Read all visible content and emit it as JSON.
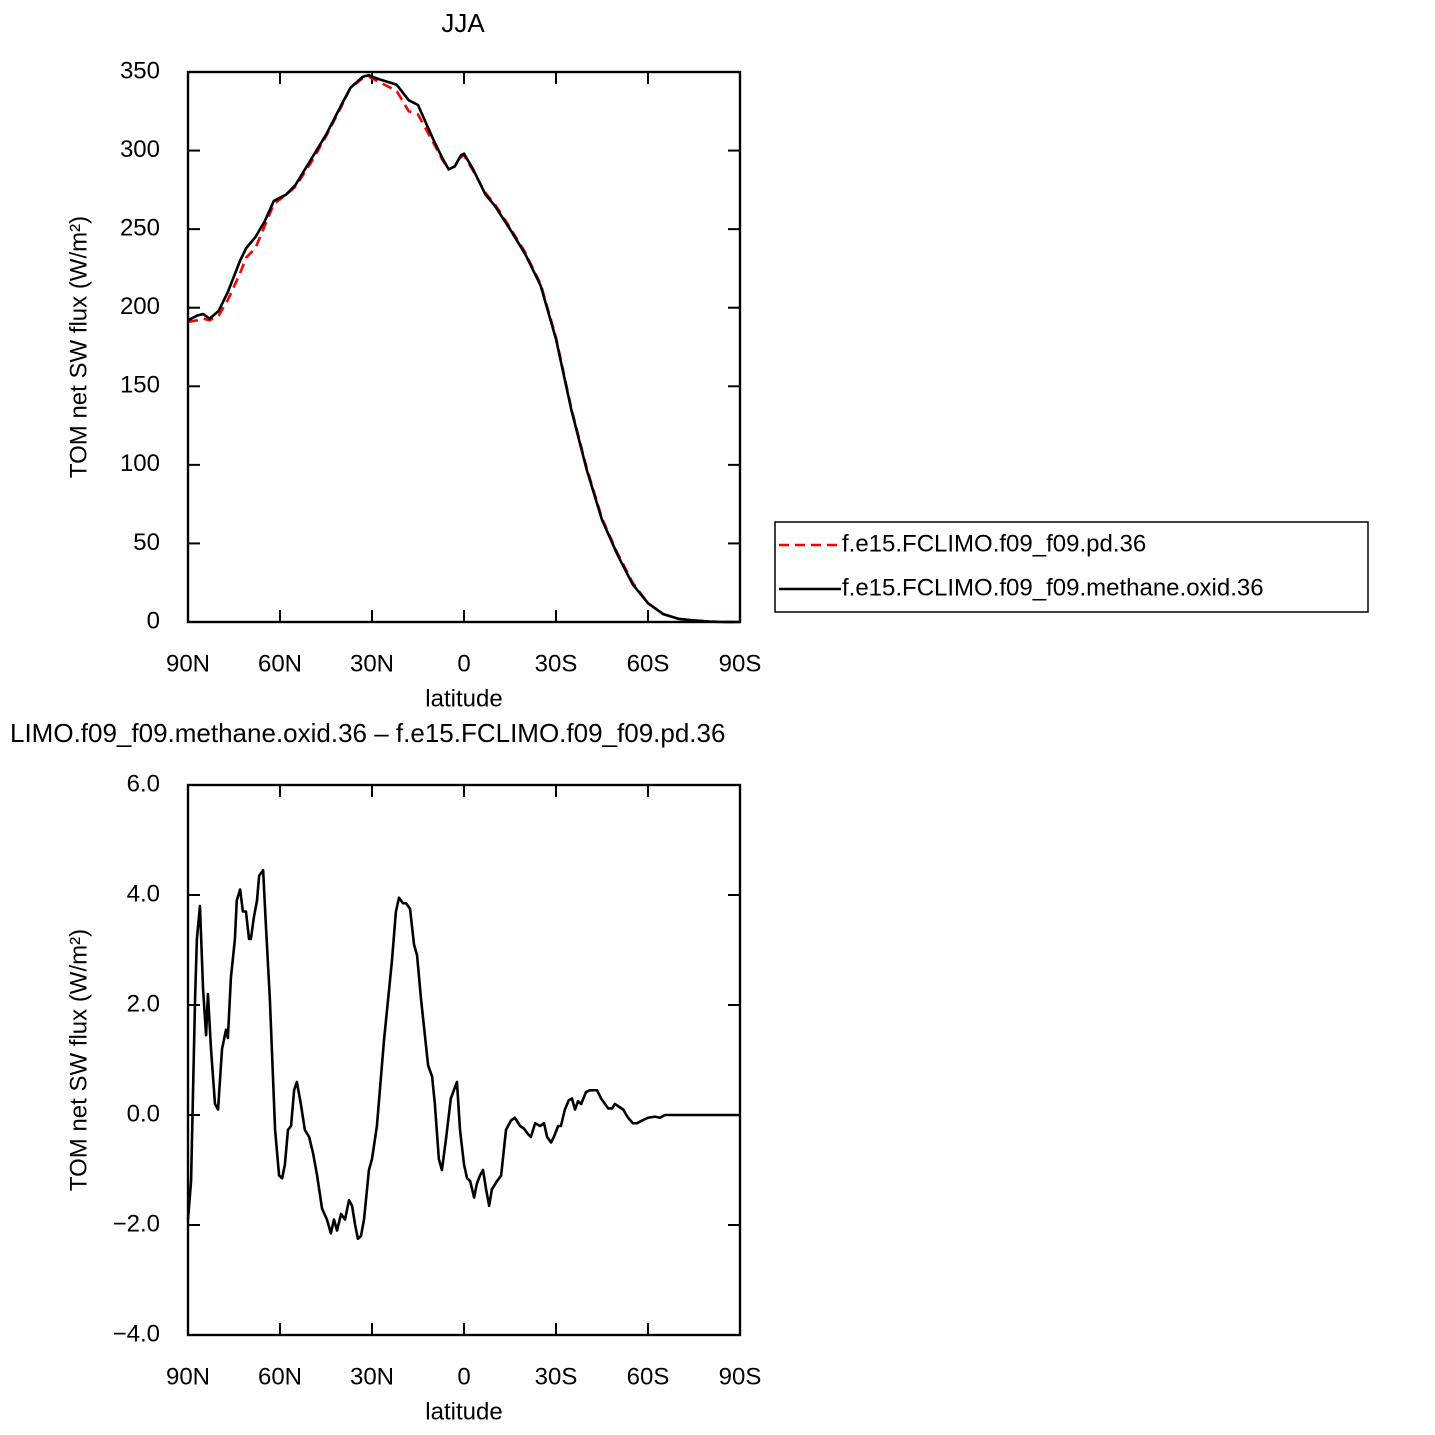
{
  "chart_data": [
    {
      "type": "line",
      "title": "JJA",
      "xlabel": "latitude",
      "ylabel": "TOM net SW flux (W/m²)",
      "xlim": [
        90,
        -90
      ],
      "ylim": [
        0,
        350
      ],
      "xticks": [
        {
          "value": 90,
          "label": "90N"
        },
        {
          "value": 60,
          "label": "60N"
        },
        {
          "value": 30,
          "label": "30N"
        },
        0,
        {
          "value": -30,
          "label": "30S"
        },
        {
          "value": -60,
          "label": "60S"
        },
        {
          "value": -90,
          "label": "90S"
        }
      ],
      "yticks": [
        0,
        50,
        100,
        150,
        200,
        250,
        300,
        350
      ],
      "legend": "right",
      "x": [
        90,
        87,
        85,
        83,
        80,
        77,
        73,
        71,
        68,
        65,
        62,
        58,
        55,
        50,
        45,
        40,
        37,
        33,
        31,
        30,
        27,
        22,
        18,
        15,
        10,
        7,
        5,
        3,
        1,
        0,
        -3,
        -7,
        -10,
        -15,
        -20,
        -25,
        -30,
        -35,
        -40,
        -45,
        -50,
        -55,
        -60,
        -65,
        -70,
        -75,
        -80,
        -85,
        -90
      ],
      "series": [
        {
          "name": "f.e15.FCLIMO.f09_f09.pd.36",
          "color": "#ff0000",
          "dash": true,
          "values": [
            191,
            192,
            193,
            192,
            195,
            205,
            222,
            232,
            238,
            252,
            266,
            272,
            277,
            292,
            309,
            328,
            340,
            346,
            347,
            346,
            343,
            338,
            325,
            323,
            305,
            294,
            288,
            290,
            296,
            297,
            287,
            273,
            266,
            251,
            235,
            215,
            181,
            136,
            98,
            66,
            44,
            25,
            12,
            5,
            2,
            1,
            0.3,
            0,
            0
          ]
        },
        {
          "name": "f.e15.FCLIMO.f09_f09.methane.oxid.36",
          "color": "#000000",
          "dash": false,
          "values": [
            192,
            195,
            196,
            193,
            198,
            210,
            230,
            238,
            245,
            255,
            268,
            272,
            278,
            294,
            310,
            329,
            340,
            347,
            348,
            347,
            345,
            342,
            332,
            329,
            307,
            295,
            288,
            290,
            297,
            298,
            288,
            272,
            265,
            250,
            234,
            214,
            180,
            135,
            97,
            65,
            43,
            24,
            12,
            5,
            2,
            1,
            0.3,
            0,
            0
          ]
        }
      ]
    },
    {
      "type": "line",
      "title": "LIMO.f09_f09.methane.oxid.36 – f.e15.FCLIMO.f09_f09.pd.36",
      "xlabel": "latitude",
      "ylabel": "TOM net SW flux (W/m²)",
      "xlim": [
        90,
        -90
      ],
      "ylim": [
        -4,
        6
      ],
      "xticks": [
        {
          "value": 90,
          "label": "90N"
        },
        {
          "value": 60,
          "label": "60N"
        },
        {
          "value": 30,
          "label": "30N"
        },
        0,
        {
          "value": -30,
          "label": "30S"
        },
        {
          "value": -60,
          "label": "60S"
        },
        {
          "value": -90,
          "label": "90S"
        }
      ],
      "yticks": [
        {
          "value": -4,
          "label": "−4.0"
        },
        {
          "value": -2,
          "label": "−2.0"
        },
        {
          "value": 0,
          "label": "0.0"
        },
        {
          "value": 2,
          "label": "2.0"
        },
        {
          "value": 4,
          "label": "4.0"
        },
        {
          "value": 6,
          "label": "6.0"
        }
      ],
      "x": [
        90,
        89.0,
        87.7,
        87.1,
        86.1,
        85.1,
        84.1,
        83.5,
        82.5,
        81.2,
        80.2,
        78.9,
        77.6,
        77.0,
        76.0,
        74.7,
        74.1,
        73.0,
        72.1,
        71.1,
        70.1,
        69.5,
        68.5,
        67.5,
        66.8,
        65.5,
        64.6,
        63.3,
        61.6,
        60.3,
        59.3,
        58.4,
        57.4,
        56.4,
        55.4,
        54.5,
        53.2,
        51.9,
        50.5,
        49.2,
        47.9,
        46.3,
        44.7,
        43.4,
        42.4,
        41.4,
        40.1,
        38.8,
        37.5,
        36.5,
        35.5,
        34.6,
        33.6,
        32.6,
        31.0,
        30.0,
        28.4,
        26.1,
        23.5,
        22.2,
        21.2,
        19.9,
        18.9,
        17.6,
        16.3,
        15.3,
        14.0,
        11.7,
        10.4,
        9.5,
        8.2,
        7.2,
        5.9,
        4.3,
        3.3,
        2.3,
        1.3,
        0.0,
        -1.0,
        -2.0,
        -3.3,
        -4.2,
        -5.2,
        -6.2,
        -7.2,
        -8.2,
        -9.1,
        -10.8,
        -12.1,
        -13.7,
        -15.3,
        -16.6,
        -18.3,
        -19.6,
        -20.9,
        -21.8,
        -23.2,
        -24.8,
        -26.1,
        -27.1,
        -28.4,
        -29.3,
        -30.7,
        -31.6,
        -32.9,
        -34.2,
        -35.2,
        -36.2,
        -37.2,
        -38.2,
        -39.8,
        -41.1,
        -43.4,
        -44.7,
        -47.0,
        -48.3,
        -49.2,
        -51.9,
        -53.5,
        -55.1,
        -56.4,
        -58.1,
        -60.0,
        -62.3,
        -63.9,
        -65.5,
        -70.4,
        -90
      ],
      "series": [
        {
          "color": "#000000",
          "dash": false,
          "values": [
            -1.9,
            -1.2,
            2.1,
            3.2,
            3.8,
            2.3,
            1.45,
            2.2,
            1.2,
            0.2,
            0.1,
            1.2,
            1.55,
            1.4,
            2.5,
            3.2,
            3.9,
            4.1,
            3.7,
            3.7,
            3.2,
            3.2,
            3.6,
            3.9,
            4.35,
            4.45,
            3.45,
            2.1,
            -0.27,
            -1.1,
            -1.15,
            -0.9,
            -0.27,
            -0.2,
            0.45,
            0.6,
            0.2,
            -0.27,
            -0.4,
            -0.7,
            -1.1,
            -1.7,
            -1.9,
            -2.15,
            -1.9,
            -2.1,
            -1.8,
            -1.9,
            -1.55,
            -1.65,
            -2.0,
            -2.25,
            -2.2,
            -1.9,
            -1.0,
            -0.8,
            -0.2,
            1.35,
            2.8,
            3.7,
            3.95,
            3.85,
            3.85,
            3.75,
            3.1,
            2.9,
            2.1,
            0.9,
            0.7,
            0.2,
            -0.8,
            -1.0,
            -0.45,
            0.3,
            0.45,
            0.6,
            -0.27,
            -0.9,
            -1.15,
            -1.2,
            -1.5,
            -1.25,
            -1.1,
            -1.0,
            -1.35,
            -1.65,
            -1.35,
            -1.2,
            -1.1,
            -0.27,
            -0.1,
            -0.05,
            -0.2,
            -0.25,
            -0.35,
            -0.4,
            -0.15,
            -0.2,
            -0.15,
            -0.4,
            -0.5,
            -0.4,
            -0.2,
            -0.2,
            0.1,
            0.27,
            0.3,
            0.1,
            0.25,
            0.2,
            0.42,
            0.45,
            0.45,
            0.3,
            0.12,
            0.12,
            0.2,
            0.1,
            -0.05,
            -0.15,
            -0.15,
            -0.1,
            -0.05,
            -0.03,
            -0.05,
            0,
            0,
            0
          ]
        }
      ]
    }
  ]
}
